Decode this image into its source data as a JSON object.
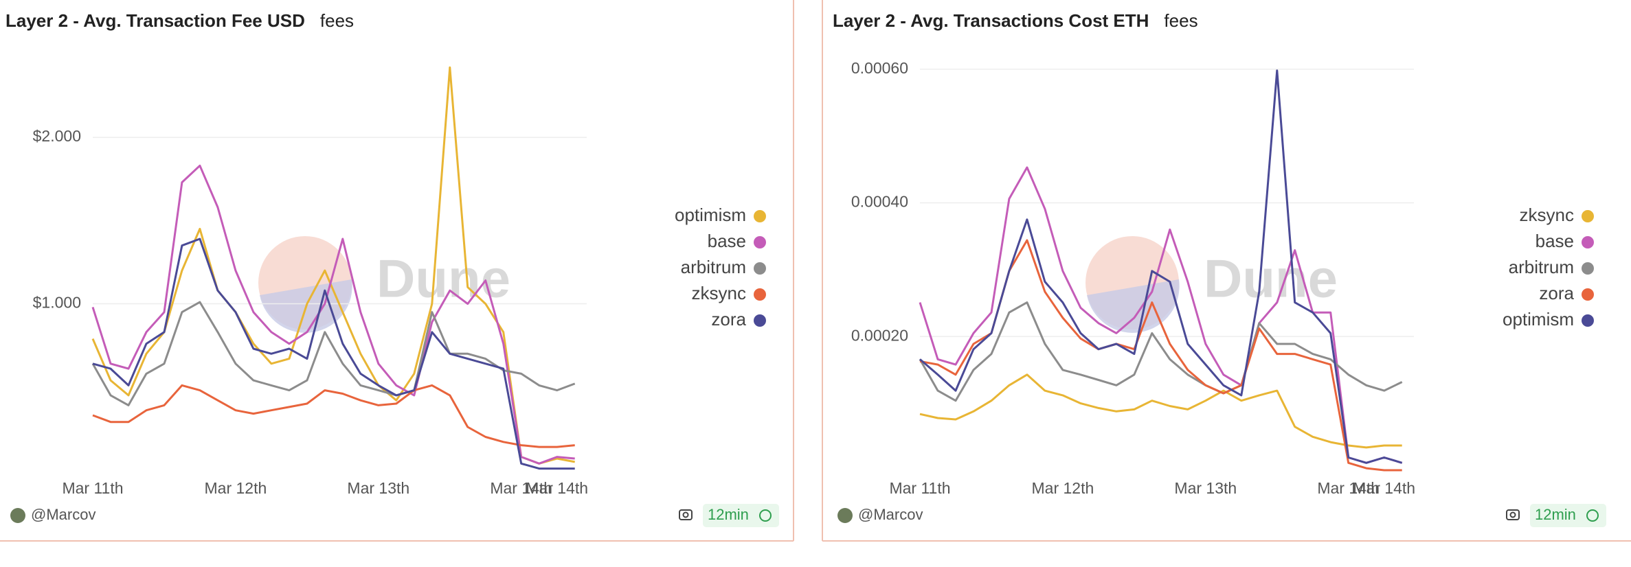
{
  "chart_data": [
    {
      "type": "line",
      "title": "Layer 2 - Avg. Transaction Fee USD",
      "subtitle": "fees",
      "watermark": "Dune",
      "x": [
        0,
        3,
        6,
        9,
        12,
        15,
        18,
        21,
        24,
        27,
        30,
        33,
        36,
        39,
        42,
        45,
        48,
        51,
        54,
        57,
        60,
        63,
        66,
        69,
        72,
        75,
        78,
        81
      ],
      "xlim": [
        0,
        83
      ],
      "xticks": [
        {
          "value": 0,
          "label": "Mar 11th"
        },
        {
          "value": 24,
          "label": "Mar 12th"
        },
        {
          "value": 48,
          "label": "Mar 13th"
        },
        {
          "value": 72,
          "label": "Mar 14th"
        },
        {
          "value": 78,
          "label": "Mar 14th"
        }
      ],
      "ylim": [
        0,
        2.45
      ],
      "yticks": [
        {
          "value": 1,
          "label": "$1.000"
        },
        {
          "value": 2,
          "label": "$2.000"
        }
      ],
      "grid": true,
      "series": [
        {
          "name": "optimism",
          "color": "#e8b534",
          "values": [
            0.79,
            0.54,
            0.45,
            0.7,
            0.83,
            1.2,
            1.45,
            1.08,
            0.95,
            0.76,
            0.64,
            0.67,
            1.0,
            1.2,
            0.95,
            0.7,
            0.51,
            0.42,
            0.58,
            1.0,
            2.42,
            1.1,
            1.0,
            0.83,
            0.08,
            0.04,
            0.07,
            0.05
          ]
        },
        {
          "name": "base",
          "color": "#c45cb8",
          "values": [
            0.98,
            0.64,
            0.61,
            0.83,
            0.95,
            1.73,
            1.83,
            1.58,
            1.2,
            0.95,
            0.83,
            0.76,
            0.83,
            1.0,
            1.39,
            0.95,
            0.64,
            0.51,
            0.45,
            0.89,
            1.08,
            1.0,
            1.14,
            0.76,
            0.08,
            0.04,
            0.08,
            0.07
          ]
        },
        {
          "name": "arbitrum",
          "color": "#8c8c8c",
          "values": [
            0.64,
            0.45,
            0.39,
            0.58,
            0.64,
            0.95,
            1.01,
            0.83,
            0.64,
            0.54,
            0.51,
            0.48,
            0.54,
            0.83,
            0.64,
            0.51,
            0.48,
            0.45,
            0.48,
            0.95,
            0.7,
            0.7,
            0.67,
            0.6,
            0.58,
            0.51,
            0.48,
            0.52
          ]
        },
        {
          "name": "zksync",
          "color": "#e8643c",
          "values": [
            0.33,
            0.29,
            0.29,
            0.36,
            0.39,
            0.51,
            0.48,
            0.42,
            0.36,
            0.34,
            0.36,
            0.38,
            0.4,
            0.48,
            0.46,
            0.42,
            0.39,
            0.4,
            0.48,
            0.51,
            0.45,
            0.26,
            0.2,
            0.17,
            0.15,
            0.14,
            0.14,
            0.15
          ]
        },
        {
          "name": "zora",
          "color": "#4a4a96",
          "values": [
            0.64,
            0.61,
            0.51,
            0.76,
            0.83,
            1.35,
            1.39,
            1.08,
            0.95,
            0.73,
            0.7,
            0.73,
            0.67,
            1.08,
            0.76,
            0.58,
            0.51,
            0.45,
            0.48,
            0.83,
            0.7,
            0.67,
            0.64,
            0.61,
            0.04,
            0.01,
            0.01,
            0.01
          ]
        }
      ],
      "footer": {
        "author": "@Marcov",
        "age": "12min"
      }
    },
    {
      "type": "line",
      "title": "Layer 2 - Avg. Transactions Cost ETH",
      "subtitle": "fees",
      "watermark": "Dune",
      "x": [
        0,
        3,
        6,
        9,
        12,
        15,
        18,
        21,
        24,
        27,
        30,
        33,
        36,
        39,
        42,
        45,
        48,
        51,
        54,
        57,
        60,
        63,
        66,
        69,
        72,
        75,
        78,
        81
      ],
      "xlim": [
        0,
        83
      ],
      "xticks": [
        {
          "value": 0,
          "label": "Mar 11th"
        },
        {
          "value": 24,
          "label": "Mar 12th"
        },
        {
          "value": 48,
          "label": "Mar 13th"
        },
        {
          "value": 72,
          "label": "Mar 14th"
        },
        {
          "value": 78,
          "label": "Mar 14th"
        }
      ],
      "ylim": [
        0,
        0.00061
      ],
      "yticks": [
        {
          "value": 0.0002,
          "label": "0.00020"
        },
        {
          "value": 0.0004,
          "label": "0.00040"
        },
        {
          "value": 0.0006,
          "label": "0.00060"
        }
      ],
      "grid": true,
      "series": [
        {
          "name": "zksync",
          "color": "#e8b534",
          "values": [
            8.4e-05,
            7.8e-05,
            7.6e-05,
            8.8e-05,
            0.000104,
            0.000127,
            0.000143,
            0.000119,
            0.000112,
            0.0001,
            9.3e-05,
            8.8e-05,
            9.1e-05,
            0.000104,
            9.6e-05,
            9.1e-05,
            0.000104,
            0.000119,
            0.000104,
            0.000112,
            0.000119,
            6.5e-05,
            5e-05,
            4.2e-05,
            3.7e-05,
            3.4e-05,
            3.7e-05,
            3.7e-05
          ]
        },
        {
          "name": "base",
          "color": "#c45cb8",
          "values": [
            0.000251,
            0.000166,
            0.000158,
            0.000205,
            0.000236,
            0.000406,
            0.000453,
            0.000391,
            0.000298,
            0.000243,
            0.00022,
            0.000205,
            0.000228,
            0.000267,
            0.00036,
            0.000282,
            0.000189,
            0.000143,
            0.000127,
            0.00022,
            0.000251,
            0.000329,
            0.000236,
            0.000236,
            1.9e-05,
            1.1e-05,
            1.9e-05,
            1.1e-05
          ]
        },
        {
          "name": "arbitrum",
          "color": "#8c8c8c",
          "values": [
            0.000166,
            0.000119,
            0.000104,
            0.00015,
            0.000174,
            0.000236,
            0.000251,
            0.000189,
            0.00015,
            0.000143,
            0.000135,
            0.000127,
            0.000143,
            0.000205,
            0.000166,
            0.000143,
            0.000127,
            0.000115,
            0.000127,
            0.00022,
            0.000189,
            0.000189,
            0.000174,
            0.000166,
            0.000143,
            0.000127,
            0.000119,
            0.000132
          ]
        },
        {
          "name": "zora",
          "color": "#e8643c",
          "values": [
            0.000163,
            0.000158,
            0.000143,
            0.000189,
            0.000205,
            0.000298,
            0.000344,
            0.000267,
            0.000228,
            0.000197,
            0.000181,
            0.000189,
            0.000181,
            0.000251,
            0.000189,
            0.00015,
            0.000127,
            0.000115,
            0.000127,
            0.000212,
            0.000174,
            0.000174,
            0.000166,
            0.000158,
            1.1e-05,
            3e-06,
            0,
            0
          ]
        },
        {
          "name": "optimism",
          "color": "#4a4a96",
          "values": [
            0.000166,
            0.000143,
            0.000119,
            0.000181,
            0.000205,
            0.000298,
            0.000375,
            0.000282,
            0.000251,
            0.000205,
            0.000181,
            0.000189,
            0.000174,
            0.000298,
            0.000282,
            0.000189,
            0.000158,
            0.000127,
            0.000112,
            0.000267,
            0.000598,
            0.000251,
            0.000236,
            0.000205,
            1.9e-05,
            1.1e-05,
            1.9e-05,
            1.1e-05
          ]
        }
      ],
      "footer": {
        "author": "@Marcov",
        "age": "12min"
      }
    }
  ]
}
